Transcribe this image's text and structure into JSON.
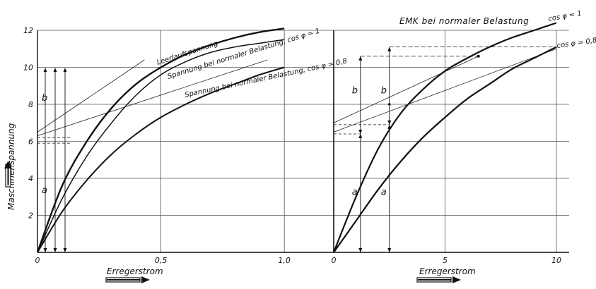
{
  "chart_data": [
    {
      "type": "line",
      "xlabel": "Erregerstrom",
      "ylabel": "Maschinenspannung",
      "xlim": [
        0,
        1.2
      ],
      "ylim": [
        0,
        12
      ],
      "x_ticks": [
        "0",
        "0,5",
        "1,0"
      ],
      "x_tick_values": [
        0,
        0.5,
        1.0
      ],
      "y_ticks": [
        "2",
        "4",
        "6",
        "8",
        "10",
        "12"
      ],
      "y_tick_values": [
        2,
        4,
        6,
        8,
        10,
        12
      ],
      "grid": true,
      "series": [
        {
          "name": "Leerlaufspannung",
          "x": [
            0,
            0.1,
            0.2,
            0.3,
            0.4,
            0.5,
            0.6,
            0.7,
            0.8,
            0.9,
            1.0
          ],
          "y": [
            0,
            3.6,
            6.0,
            7.8,
            9.1,
            10.0,
            10.7,
            11.2,
            11.6,
            11.9,
            12.1
          ]
        },
        {
          "name": "Spannung bei normaler Belastung, cos φ = 1",
          "x": [
            0,
            0.1,
            0.2,
            0.3,
            0.4,
            0.5,
            0.6,
            0.7,
            0.8,
            0.9,
            1.0
          ],
          "y": [
            0,
            2.9,
            5.2,
            7.0,
            8.5,
            9.6,
            10.3,
            10.8,
            11.1,
            11.3,
            11.5
          ]
        },
        {
          "name": "Spannung bei normaler Belastung, cos φ = 0,8",
          "x": [
            0,
            0.1,
            0.2,
            0.3,
            0.4,
            0.5,
            0.6,
            0.7,
            0.8,
            0.9,
            1.0
          ],
          "y": [
            0,
            2.2,
            3.9,
            5.3,
            6.4,
            7.3,
            8.0,
            8.6,
            9.1,
            9.6,
            10.0
          ]
        },
        {
          "name": "tangent",
          "x": [
            0,
            1.0
          ],
          "y": [
            6.5,
            15.5
          ]
        },
        {
          "name": "tangent",
          "x": [
            0,
            1.0
          ],
          "y": [
            6.3,
            10.7
          ]
        }
      ],
      "dimension_labels": [
        "b",
        "a"
      ]
    },
    {
      "type": "line",
      "title": "EMK bei normaler Belastung",
      "xlabel": "Erregerstrom",
      "xlim": [
        0,
        10
      ],
      "ylim": [
        0,
        12
      ],
      "x_ticks": [
        "0",
        "5",
        "10"
      ],
      "x_tick_values": [
        0,
        5,
        10
      ],
      "grid": true,
      "series": [
        {
          "name": "cos φ = 1",
          "x": [
            0,
            1,
            2,
            3,
            4,
            5,
            6,
            7,
            8,
            9,
            10
          ],
          "y": [
            0,
            3.0,
            5.6,
            7.5,
            8.8,
            9.8,
            10.5,
            11.1,
            11.6,
            12.0,
            12.4
          ]
        },
        {
          "name": "cos φ = 0,8",
          "x": [
            0,
            1,
            2,
            3,
            4,
            5,
            6,
            7,
            8,
            9,
            10
          ],
          "y": [
            0,
            1.7,
            3.4,
            4.9,
            6.2,
            7.3,
            8.3,
            9.1,
            9.9,
            10.5,
            11.1
          ]
        },
        {
          "name": "tangent",
          "x": [
            0,
            6.5
          ],
          "y": [
            7.0,
            10.6
          ]
        },
        {
          "name": "tangent",
          "x": [
            0,
            10
          ],
          "y": [
            6.5,
            11.0
          ]
        }
      ],
      "dimension_labels": [
        "b",
        "b",
        "a",
        "a"
      ]
    }
  ],
  "text": {
    "left_curve_labels": [
      "Leerlaufspannung",
      "Spannung bei normaler Belastung, cos φ = 1",
      "Spannung bei normaler Belastung, cos φ = 0,8"
    ],
    "right_title": "EMK bei normaler Belastung",
    "right_cos1": "cos φ = 1",
    "right_cos08": "cos φ = 0,8",
    "xlabel_left": "Erregerstrom",
    "xlabel_right": "Erregerstrom",
    "ylabel": "Maschinenspannung"
  }
}
